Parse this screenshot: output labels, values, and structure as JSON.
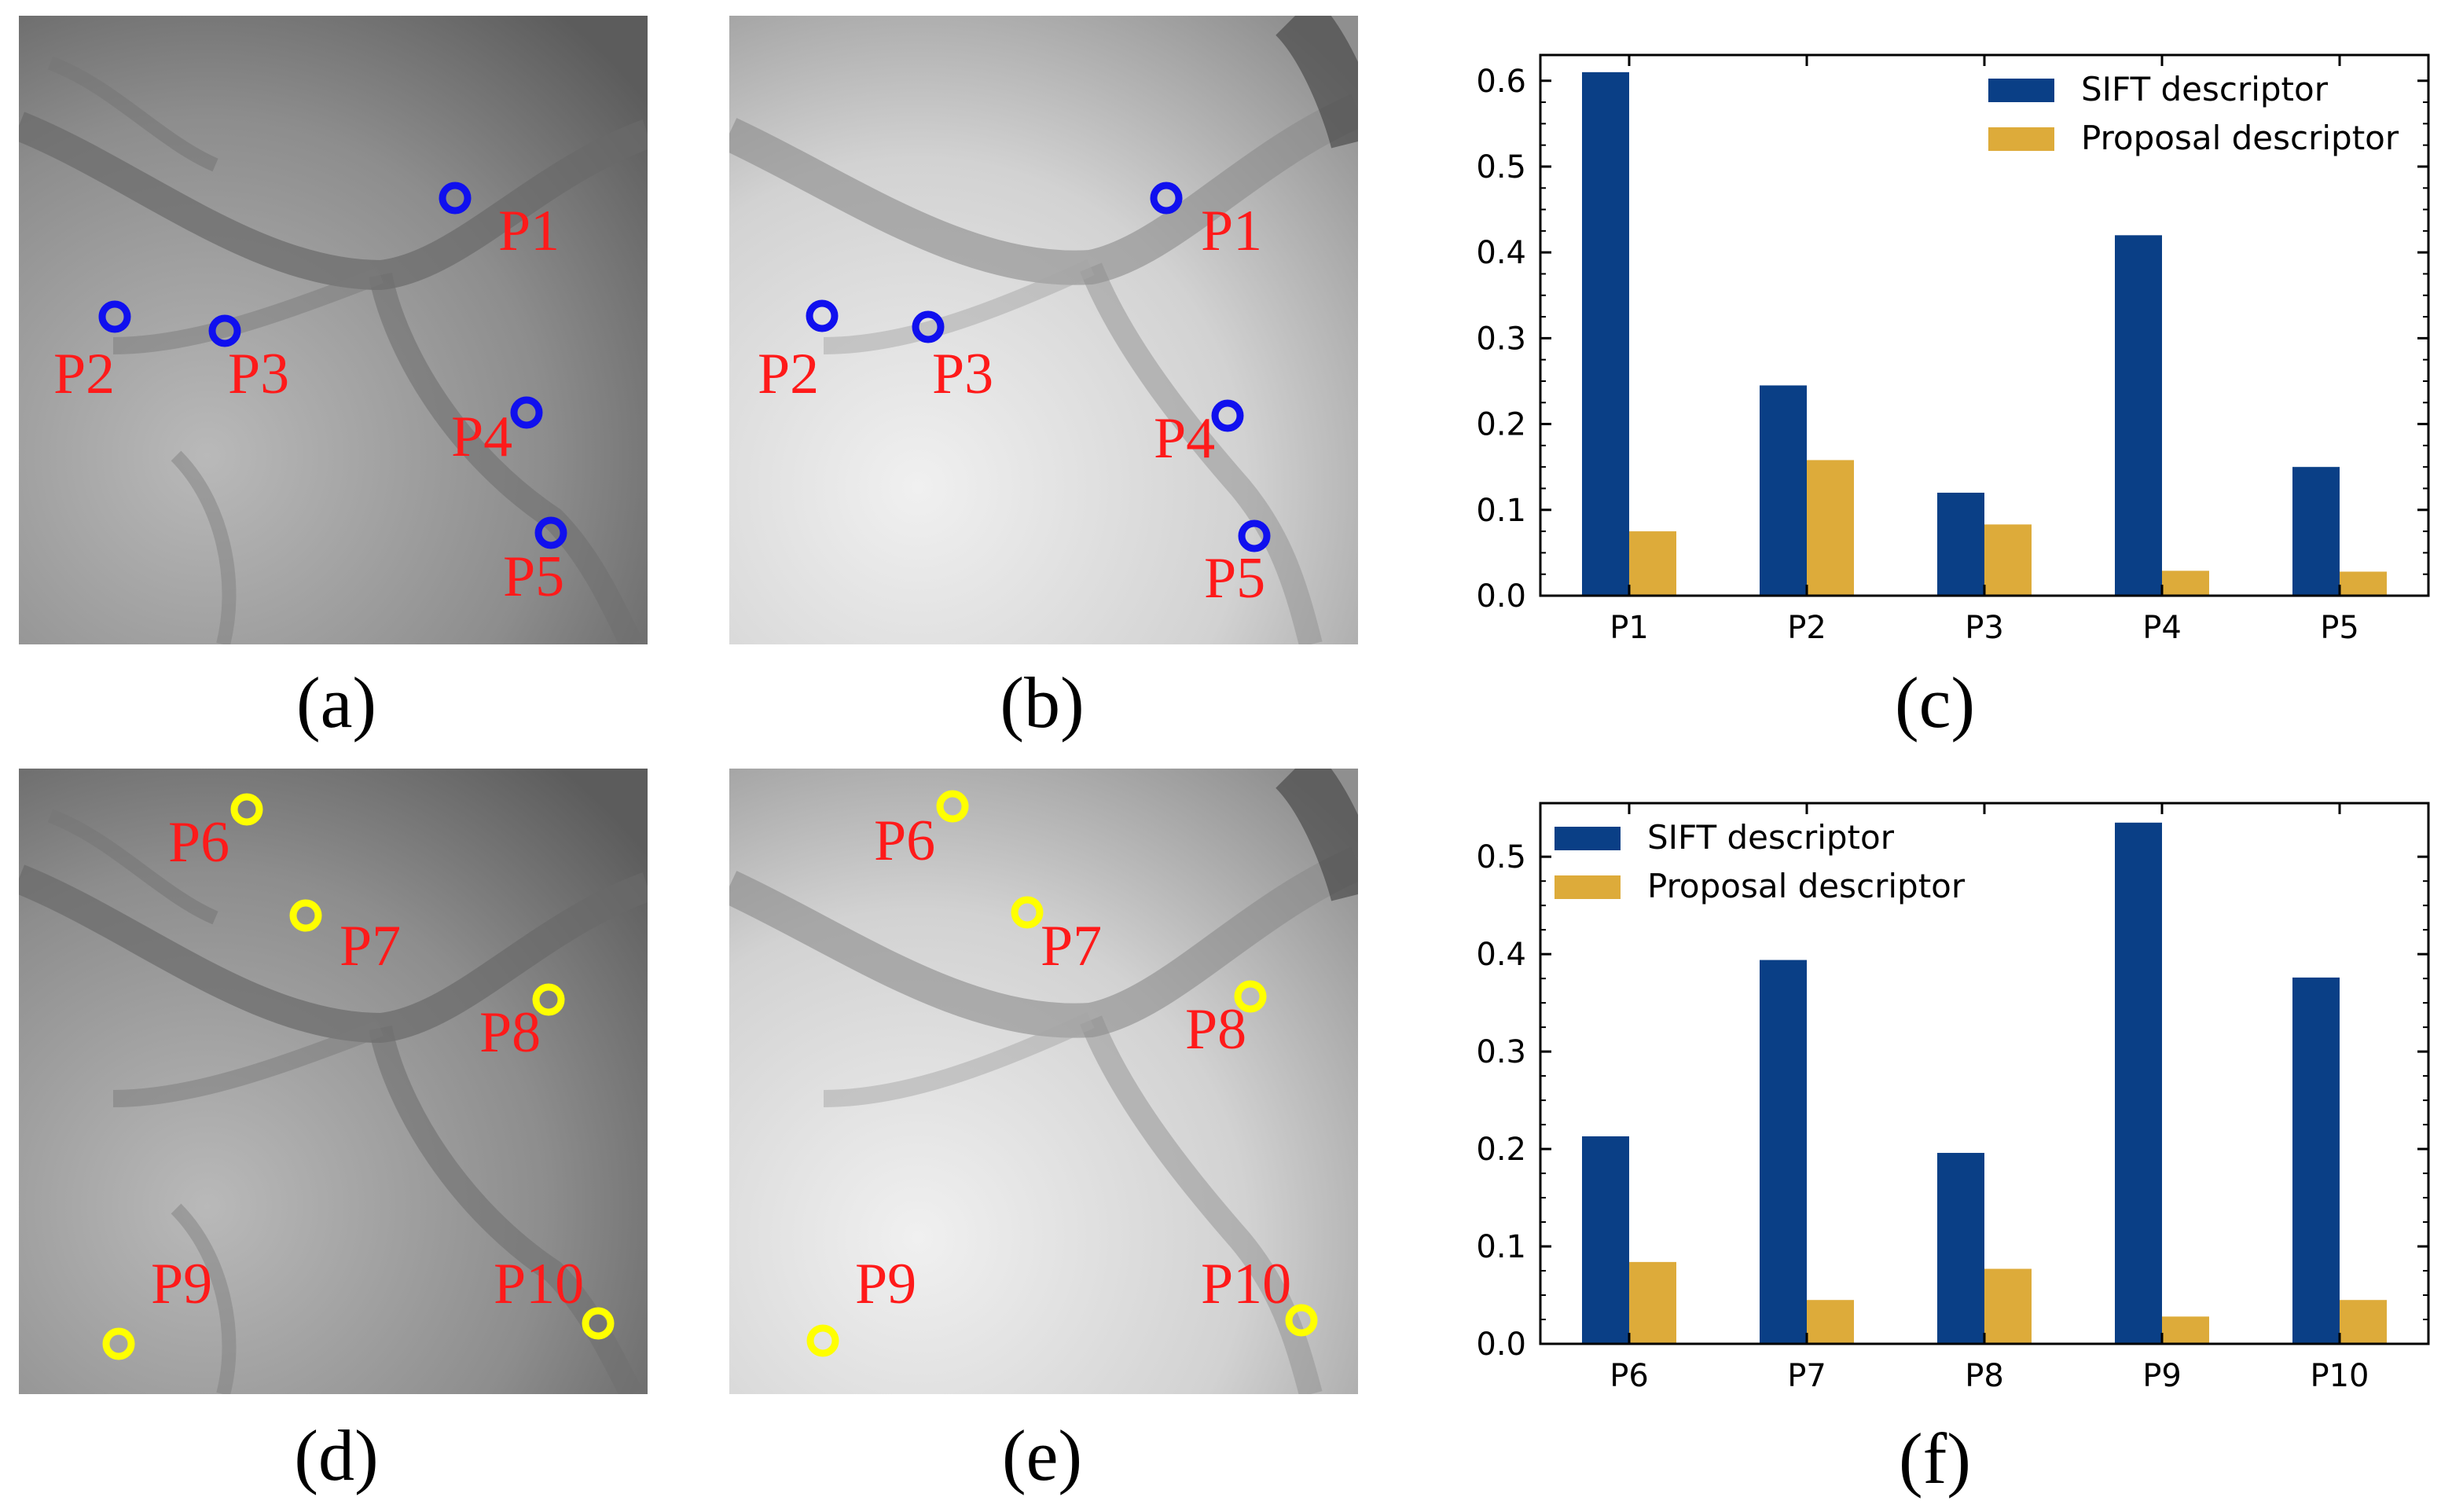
{
  "colors": {
    "sift": "#0a3f86",
    "proposal": "#ddab3a",
    "marker_top": "#1010ee",
    "marker_bottom": "#ffff00",
    "label": "#ff1a1a"
  },
  "panels": {
    "a": {
      "caption": "(a)",
      "points": [
        {
          "label": "P1"
        },
        {
          "label": "P2"
        },
        {
          "label": "P3"
        },
        {
          "label": "P4"
        },
        {
          "label": "P5"
        }
      ]
    },
    "b": {
      "caption": "(b)",
      "points": [
        {
          "label": "P1"
        },
        {
          "label": "P2"
        },
        {
          "label": "P3"
        },
        {
          "label": "P4"
        },
        {
          "label": "P5"
        }
      ]
    },
    "d": {
      "caption": "(d)",
      "points": [
        {
          "label": "P6"
        },
        {
          "label": "P7"
        },
        {
          "label": "P8"
        },
        {
          "label": "P9"
        },
        {
          "label": "P10"
        }
      ]
    },
    "e": {
      "caption": "(e)",
      "points": [
        {
          "label": "P6"
        },
        {
          "label": "P7"
        },
        {
          "label": "P8"
        },
        {
          "label": "P9"
        },
        {
          "label": "P10"
        }
      ]
    },
    "c": {
      "caption": "(c)"
    },
    "f": {
      "caption": "(f)"
    }
  },
  "chart_data": [
    {
      "id": "c",
      "type": "bar",
      "categories": [
        "P1",
        "P2",
        "P3",
        "P4",
        "P5"
      ],
      "series": [
        {
          "name": "SIFT descriptor",
          "values": [
            0.61,
            0.245,
            0.12,
            0.42,
            0.15
          ]
        },
        {
          "name": "Proposal descriptor",
          "values": [
            0.075,
            0.158,
            0.083,
            0.029,
            0.028
          ]
        }
      ],
      "ylim": [
        0,
        0.63
      ],
      "yticks": [
        0.0,
        0.1,
        0.2,
        0.3,
        0.4,
        0.5,
        0.6
      ],
      "ytick_labels": [
        "0.0",
        "0.1",
        "0.2",
        "0.3",
        "0.4",
        "0.5",
        "0.6"
      ],
      "legend": "top-right",
      "xlabel": "",
      "ylabel": "",
      "title": ""
    },
    {
      "id": "f",
      "type": "bar",
      "categories": [
        "P6",
        "P7",
        "P8",
        "P9",
        "P10"
      ],
      "series": [
        {
          "name": "SIFT descriptor",
          "values": [
            0.213,
            0.394,
            0.196,
            0.535,
            0.376
          ]
        },
        {
          "name": "Proposal descriptor",
          "values": [
            0.084,
            0.045,
            0.077,
            0.028,
            0.045
          ]
        }
      ],
      "ylim": [
        0,
        0.555
      ],
      "yticks": [
        0.0,
        0.1,
        0.2,
        0.3,
        0.4,
        0.5
      ],
      "ytick_labels": [
        "0.0",
        "0.1",
        "0.2",
        "0.3",
        "0.4",
        "0.5"
      ],
      "legend": "top-left",
      "xlabel": "",
      "ylabel": "",
      "title": ""
    }
  ]
}
